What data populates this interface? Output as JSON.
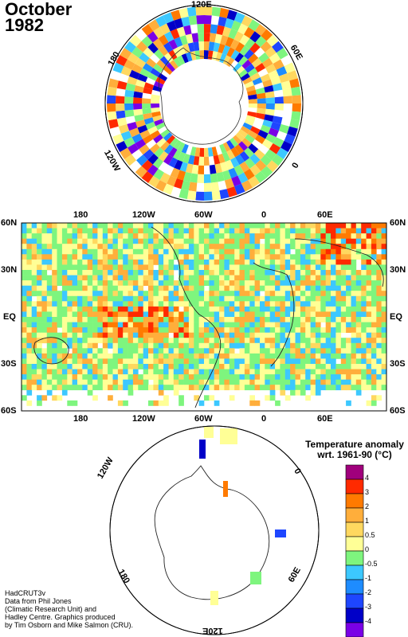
{
  "title": {
    "month": "October",
    "year": "1982"
  },
  "north_polar": {
    "labels": {
      "top": "120E",
      "left": "180",
      "right": "60E",
      "bottom_left": "120W",
      "bottom_right": "0"
    }
  },
  "world_map": {
    "top_lon": [
      "180",
      "120W",
      "60W",
      "0",
      "60E"
    ],
    "bottom_lon": [
      "180",
      "120W",
      "60W",
      "0",
      "60E"
    ],
    "lat_left": [
      "60N",
      "30N",
      "EQ",
      "30S",
      "60S"
    ],
    "lat_right": [
      "60N",
      "30N",
      "EQ",
      "30S",
      "60S"
    ]
  },
  "south_polar": {
    "labels": {
      "top_left": "120W",
      "top_right": "0",
      "bottom_left": "180",
      "bottom_right": "60E",
      "bottom": "120E"
    }
  },
  "legend": {
    "title_line1": "Temperature anomaly",
    "title_line2": "wrt. 1961-90  (°C)",
    "ticks": [
      "4",
      "3",
      "2",
      "1",
      "0.5",
      "0",
      "-0.5",
      "-1",
      "-2",
      "-3",
      "-4"
    ],
    "colors": [
      "#a0007c",
      "#ff2a00",
      "#ff7a00",
      "#ffae3b",
      "#ffd85f",
      "#ffff96",
      "#7ef57e",
      "#3cc8ff",
      "#1e8cff",
      "#1e46ff",
      "#0000c8",
      "#7a00e6"
    ]
  },
  "credit": {
    "line1": "HadCRUT3v",
    "line2": "Data from Phil Jones",
    "line3": "(Climatic Research Unit) and",
    "line4": "Hadley Centre.  Graphics produced",
    "line5": "by Tim Osborn and Mike Salmon (CRU)."
  }
}
